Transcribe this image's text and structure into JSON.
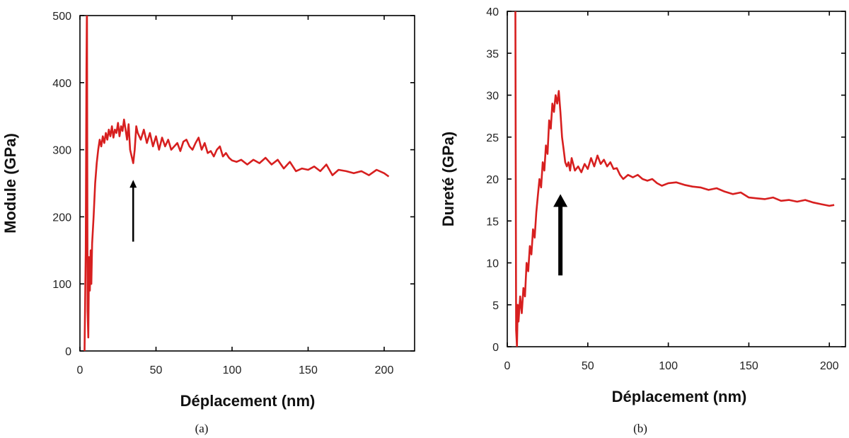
{
  "chart_data": [
    {
      "type": "line",
      "caption": "(a)",
      "xlabel": "Déplacement (nm)",
      "ylabel": "Module (GPa)",
      "xlim": [
        0,
        220
      ],
      "ylim": [
        0,
        500
      ],
      "xticks": [
        0,
        50,
        100,
        150,
        200
      ],
      "yticks": [
        0,
        100,
        200,
        300,
        400,
        500
      ],
      "grid": false,
      "line_color": "#d71f1f",
      "arrow_color": "#000000",
      "annotations": [
        {
          "type": "arrow",
          "x": 35,
          "y_from": 163,
          "y_to": 255
        }
      ],
      "series": [
        {
          "x": [
            3,
            3.8,
            4.3,
            4.6,
            5,
            5.5,
            6,
            6.5,
            7,
            7.5,
            8,
            9,
            10,
            11,
            12,
            13,
            14,
            15,
            16,
            17,
            18,
            19,
            20,
            21,
            22,
            23,
            24,
            25,
            26,
            27,
            28,
            29,
            30,
            31,
            32,
            33,
            34,
            35,
            36,
            37,
            38,
            40,
            42,
            44,
            46,
            48,
            50,
            52,
            54,
            56,
            58,
            60,
            62,
            64,
            66,
            68,
            70,
            72,
            74,
            76,
            78,
            80,
            82,
            84,
            86,
            88,
            90,
            92,
            94,
            96,
            98,
            100,
            103,
            106,
            110,
            114,
            118,
            122,
            126,
            130,
            134,
            138,
            142,
            146,
            150,
            154,
            158,
            162,
            166,
            170,
            175,
            180,
            185,
            190,
            195,
            200,
            203
          ],
          "y": [
            0,
            150,
            420,
            520,
            60,
            20,
            140,
            90,
            150,
            100,
            160,
            200,
            250,
            280,
            300,
            315,
            305,
            320,
            310,
            325,
            315,
            330,
            320,
            335,
            318,
            330,
            325,
            340,
            320,
            335,
            328,
            345,
            330,
            315,
            338,
            300,
            290,
            280,
            300,
            335,
            325,
            315,
            330,
            310,
            325,
            305,
            320,
            300,
            318,
            305,
            315,
            300,
            305,
            310,
            298,
            312,
            315,
            305,
            300,
            310,
            318,
            300,
            310,
            295,
            298,
            290,
            300,
            305,
            290,
            295,
            288,
            284,
            282,
            285,
            278,
            285,
            280,
            288,
            278,
            285,
            272,
            282,
            268,
            272,
            270,
            275,
            268,
            278,
            262,
            270,
            268,
            265,
            268,
            262,
            270,
            265,
            260
          ]
        }
      ]
    },
    {
      "type": "line",
      "caption": "(b)",
      "xlabel": "Déplacement (nm)",
      "ylabel": "Dureté (GPa)",
      "xlim": [
        0,
        210
      ],
      "ylim": [
        0,
        40
      ],
      "xticks": [
        0,
        50,
        100,
        150,
        200
      ],
      "yticks": [
        0,
        5,
        10,
        15,
        20,
        25,
        30,
        35,
        40
      ],
      "grid": false,
      "line_color": "#d71f1f",
      "arrow_color": "#000000",
      "annotations": [
        {
          "type": "arrow",
          "x": 33,
          "y_from": 8.5,
          "y_to": 18.2
        }
      ],
      "series": [
        {
          "x": [
            5,
            5.5,
            6,
            6.5,
            7,
            8,
            9,
            10,
            11,
            12,
            13,
            14,
            15,
            16,
            17,
            18,
            19,
            20,
            21,
            22,
            23,
            24,
            25,
            26,
            27,
            28,
            29,
            30,
            31,
            32,
            33,
            34,
            35,
            36,
            37,
            38,
            39,
            40,
            42,
            44,
            46,
            48,
            50,
            52,
            54,
            56,
            58,
            60,
            62,
            64,
            66,
            68,
            70,
            72,
            75,
            78,
            81,
            84,
            87,
            90,
            93,
            96,
            100,
            105,
            110,
            115,
            120,
            125,
            130,
            135,
            140,
            145,
            150,
            155,
            160,
            165,
            170,
            175,
            180,
            185,
            190,
            195,
            200,
            203
          ],
          "y": [
            42,
            2,
            0,
            5,
            3,
            6,
            4,
            7,
            6,
            10,
            9,
            12,
            11,
            14,
            13,
            16,
            18,
            20,
            19,
            22,
            21,
            24,
            23,
            27,
            26,
            29,
            28,
            30,
            29,
            30.5,
            28,
            25,
            23.5,
            22,
            21.5,
            22,
            21,
            22.5,
            21,
            21.5,
            20.8,
            21.8,
            21.2,
            22.5,
            21.5,
            22.8,
            21.8,
            22.3,
            21.5,
            22,
            21.2,
            21.3,
            20.5,
            20,
            20.5,
            20.2,
            20.5,
            20,
            19.8,
            20,
            19.5,
            19.2,
            19.5,
            19.6,
            19.3,
            19.1,
            19,
            18.7,
            18.9,
            18.5,
            18.2,
            18.4,
            17.8,
            17.7,
            17.6,
            17.8,
            17.4,
            17.5,
            17.3,
            17.5,
            17.2,
            17,
            16.8,
            16.9
          ]
        }
      ]
    }
  ]
}
